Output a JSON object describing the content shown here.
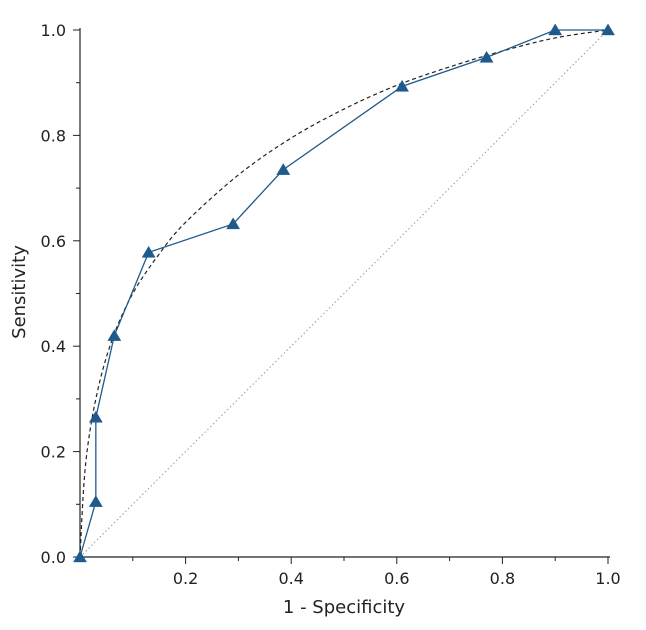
{
  "chart_data": {
    "type": "line",
    "title": "",
    "xlabel": "1 - Specificity",
    "ylabel": "Sensitivity",
    "xlim": [
      0,
      1
    ],
    "ylim": [
      0,
      1
    ],
    "x_ticks": [
      0.2,
      0.4,
      0.6,
      0.8,
      1.0
    ],
    "x_tick_labels": [
      "0.2",
      "0.4",
      "0.6",
      "0.8",
      "1.0"
    ],
    "y_ticks": [
      0.0,
      0.2,
      0.4,
      0.6,
      0.8,
      1.0
    ],
    "y_tick_labels": [
      "0.0",
      "0.2",
      "0.4",
      "0.6",
      "0.8",
      "1.0"
    ],
    "grid": false,
    "series": [
      {
        "style": "solid-with-triangle-markers",
        "color": "#1f5a8c",
        "x": [
          0.0,
          0.03,
          0.03,
          0.065,
          0.13,
          0.29,
          0.385,
          0.61,
          0.77,
          0.9,
          1.0
        ],
        "y": [
          0.0,
          0.105,
          0.265,
          0.42,
          0.578,
          0.632,
          0.735,
          0.893,
          0.948,
          1.0,
          1.0
        ]
      },
      {
        "style": "dashed-smooth-fit",
        "color": "#222222",
        "x": [
          0.0,
          0.01,
          0.03,
          0.06,
          0.1,
          0.15,
          0.2,
          0.3,
          0.4,
          0.5,
          0.6,
          0.7,
          0.8,
          0.9,
          1.0
        ],
        "y": [
          0.0,
          0.17,
          0.3,
          0.41,
          0.5,
          0.575,
          0.635,
          0.725,
          0.795,
          0.85,
          0.895,
          0.93,
          0.96,
          0.985,
          1.0
        ]
      },
      {
        "style": "dotted-reference-diagonal",
        "color": "#999999",
        "x": [
          0.0,
          1.0
        ],
        "y": [
          0.0,
          1.0
        ]
      }
    ]
  }
}
